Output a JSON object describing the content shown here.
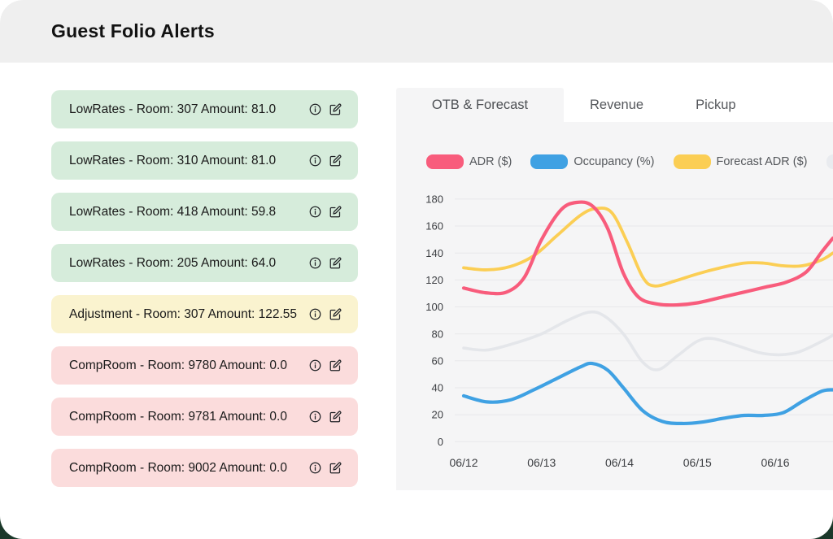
{
  "page": {
    "title": "Guest Folio Alerts"
  },
  "alerts": [
    {
      "text": "LowRates - Room: 307 Amount: 81.0",
      "severity": "success"
    },
    {
      "text": "LowRates - Room: 310 Amount: 81.0",
      "severity": "success"
    },
    {
      "text": "LowRates - Room: 418 Amount: 59.8",
      "severity": "success"
    },
    {
      "text": "LowRates - Room: 205 Amount: 64.0",
      "severity": "success"
    },
    {
      "text": "Adjustment - Room: 307 Amount: 122.55",
      "severity": "warning"
    },
    {
      "text": "CompRoom - Room: 9780 Amount: 0.0",
      "severity": "danger"
    },
    {
      "text": "CompRoom - Room: 9781 Amount: 0.0",
      "severity": "danger"
    },
    {
      "text": "CompRoom - Room: 9002 Amount: 0.0",
      "severity": "danger"
    }
  ],
  "tabs": [
    {
      "label": "OTB & Forecast",
      "active": true
    },
    {
      "label": "Revenue",
      "active": false
    },
    {
      "label": "Pickup",
      "active": false
    }
  ],
  "colors": {
    "severity_bg": {
      "success": "#D6ECDB",
      "warning": "#FAF3CF",
      "danger": "#FBDCDC"
    },
    "header_bg": "#EFEFEF",
    "panel_bg": "#F5F5F6",
    "gridline": "#E8E8EA",
    "axis_text": "#3C3E42",
    "page_behind": "#1B382A"
  },
  "chart_data": {
    "type": "line",
    "x_ticks": [
      "06/12",
      "06/13",
      "06/14",
      "06/15",
      "06/16"
    ],
    "x_unit": "days from 06/12",
    "ylim": [
      0,
      180
    ],
    "y_tick_step": 20,
    "grid": true,
    "legend_position": "top",
    "legend": [
      {
        "label": "ADR ($)",
        "color": "#F85C7C"
      },
      {
        "label": "Occupancy (%)",
        "color": "#3FA1E3"
      },
      {
        "label": "Forecast ADR ($)",
        "color": "#FBCE54"
      },
      {
        "label": "",
        "color": "#E9EBEF"
      }
    ],
    "series": [
      {
        "name": "ADR ($)",
        "color": "#F85C7C",
        "z": 3,
        "width": 4.2,
        "x": [
          0,
          0.28,
          0.55,
          0.78,
          1.0,
          1.25,
          1.45,
          1.65,
          1.85,
          2.05,
          2.25,
          2.5,
          2.75,
          3.0,
          3.3,
          3.6,
          3.9,
          4.15,
          4.4,
          4.6,
          4.74
        ],
        "values": [
          114,
          110.5,
          111,
          122,
          150,
          172,
          177.5,
          175,
          158,
          125,
          107,
          102,
          101.5,
          103,
          107,
          111,
          115,
          118.5,
          126,
          141,
          151
        ]
      },
      {
        "name": "Occupancy (%)",
        "color": "#3FA1E3",
        "z": 4,
        "width": 4.2,
        "x": [
          0,
          0.3,
          0.6,
          0.9,
          1.2,
          1.5,
          1.65,
          1.85,
          2.05,
          2.3,
          2.55,
          2.8,
          3.05,
          3.35,
          3.6,
          3.85,
          4.1,
          4.35,
          4.6,
          4.74
        ],
        "values": [
          34,
          29.5,
          31,
          38.5,
          47,
          55.5,
          58,
          53,
          40,
          23,
          15,
          13.5,
          14.5,
          17.5,
          19.5,
          19.5,
          21.5,
          30,
          37.5,
          38.5
        ]
      },
      {
        "name": "Forecast ADR ($)",
        "color": "#FBCE54",
        "z": 2,
        "width": 3.8,
        "x": [
          0,
          0.3,
          0.6,
          0.9,
          1.2,
          1.5,
          1.7,
          1.9,
          2.1,
          2.3,
          2.45,
          2.7,
          3.0,
          3.3,
          3.6,
          3.85,
          4.1,
          4.35,
          4.6,
          4.74
        ],
        "values": [
          129,
          127.5,
          130,
          138,
          153,
          168,
          173,
          170,
          148,
          122,
          115.5,
          119,
          124.5,
          129,
          132.5,
          132.5,
          130.5,
          130.5,
          135,
          140
        ]
      },
      {
        "name": "",
        "color": "#E4E6EA",
        "z": 1,
        "width": 3.6,
        "x": [
          0,
          0.3,
          0.65,
          1.0,
          1.3,
          1.6,
          1.8,
          2.05,
          2.3,
          2.5,
          2.75,
          3.0,
          3.2,
          3.5,
          3.8,
          4.05,
          4.3,
          4.6,
          4.74
        ],
        "values": [
          69.5,
          68,
          73,
          80,
          89,
          96,
          93.5,
          80,
          59,
          53.5,
          64,
          74.5,
          76.5,
          71.5,
          66,
          64.5,
          66.5,
          74.5,
          79
        ]
      }
    ]
  }
}
